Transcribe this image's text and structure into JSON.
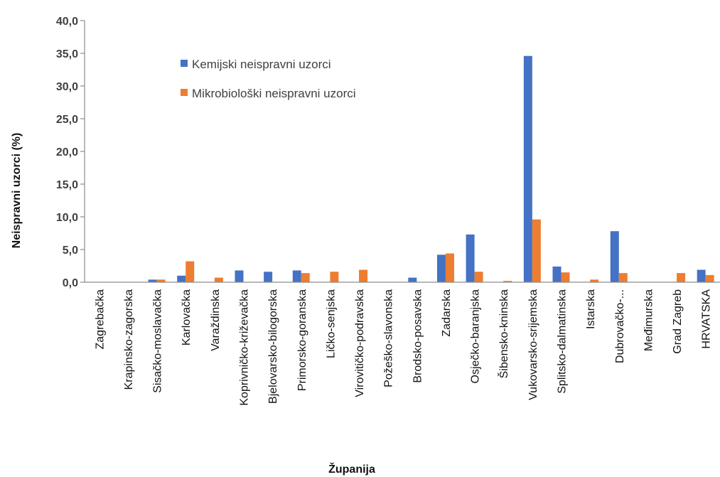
{
  "chart_data": {
    "type": "bar",
    "title": "",
    "xlabel": "Županija",
    "ylabel": "Neispravni uzorci (%)",
    "ylim": [
      0,
      40
    ],
    "yticks": [
      "0,0",
      "5,0",
      "10,0",
      "15,0",
      "20,0",
      "25,0",
      "30,0",
      "35,0",
      "40,0"
    ],
    "ytick_values": [
      0,
      5,
      10,
      15,
      20,
      25,
      30,
      35,
      40
    ],
    "grid": false,
    "legend_position": "top-center",
    "categories": [
      "Zagrebačka",
      "Krapinsko-zagorska",
      "Sisačko-moslavačka",
      "Karlovačka",
      "Varaždinska",
      "Koprivničko-križevačka",
      "Bjelovarsko-bilogorska",
      "Primorsko-goranska",
      "Ličko-senjska",
      "Virovitičko-podravska",
      "Požeško-slavonska",
      "Brodsko-posavska",
      "Zadarska",
      "Osječko-baranjska",
      "Šibensko-kninska",
      "Vukovarsko-srijemska",
      "Splitsko-dalmatinska",
      "Istarska",
      "Dubrovačko-...",
      "Međimurska",
      "Grad Zagreb",
      "HRVATSKA"
    ],
    "series": [
      {
        "name": "Kemijski neispravni uzorci",
        "color": "#4472C4",
        "values": [
          0,
          0,
          0.4,
          1.0,
          0,
          1.8,
          1.6,
          1.8,
          0,
          0,
          0,
          0.7,
          4.2,
          7.3,
          0,
          34.6,
          2.4,
          0,
          7.8,
          0,
          0,
          1.9
        ]
      },
      {
        "name": "Mikrobiološki neispravni uzorci",
        "color": "#ED7D31",
        "values": [
          0,
          0,
          0.4,
          3.2,
          0.7,
          0,
          0,
          1.4,
          1.6,
          1.9,
          0,
          0,
          4.4,
          1.6,
          0.2,
          9.6,
          1.5,
          0.4,
          1.4,
          0,
          1.4,
          1.1
        ]
      }
    ]
  }
}
